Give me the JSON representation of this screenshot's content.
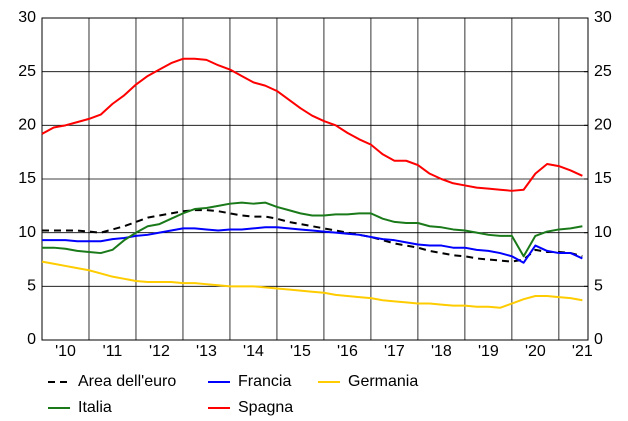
{
  "chart_data": {
    "type": "line",
    "x": [
      2010.0,
      2010.25,
      2010.5,
      2010.75,
      2011.0,
      2011.25,
      2011.5,
      2011.75,
      2012.0,
      2012.25,
      2012.5,
      2012.75,
      2013.0,
      2013.25,
      2013.5,
      2013.75,
      2014.0,
      2014.25,
      2014.5,
      2014.75,
      2015.0,
      2015.25,
      2015.5,
      2015.75,
      2016.0,
      2016.25,
      2016.5,
      2016.75,
      2017.0,
      2017.25,
      2017.5,
      2017.75,
      2018.0,
      2018.25,
      2018.5,
      2018.75,
      2019.0,
      2019.25,
      2019.5,
      2019.75,
      2020.0,
      2020.25,
      2020.5,
      2020.75,
      2021.0,
      2021.25,
      2021.5
    ],
    "series": [
      {
        "name": "Area dell'euro",
        "color": "#000000",
        "dash": true,
        "values": [
          10.2,
          10.2,
          10.2,
          10.2,
          10.1,
          10.0,
          10.3,
          10.6,
          11.0,
          11.4,
          11.6,
          11.8,
          12.0,
          12.1,
          12.1,
          12.0,
          11.8,
          11.6,
          11.5,
          11.5,
          11.3,
          11.0,
          10.8,
          10.6,
          10.4,
          10.2,
          10.0,
          9.8,
          9.6,
          9.3,
          9.0,
          8.8,
          8.6,
          8.3,
          8.1,
          7.9,
          7.8,
          7.6,
          7.5,
          7.4,
          7.3,
          7.5,
          8.4,
          8.2,
          8.2,
          8.1,
          7.8
        ]
      },
      {
        "name": "Francia",
        "color": "#0000ff",
        "values": [
          9.3,
          9.3,
          9.3,
          9.2,
          9.2,
          9.2,
          9.4,
          9.5,
          9.7,
          9.8,
          10.0,
          10.2,
          10.4,
          10.4,
          10.3,
          10.2,
          10.3,
          10.3,
          10.4,
          10.5,
          10.5,
          10.4,
          10.3,
          10.2,
          10.1,
          10.0,
          9.9,
          9.8,
          9.6,
          9.4,
          9.3,
          9.1,
          8.9,
          8.8,
          8.8,
          8.6,
          8.6,
          8.4,
          8.3,
          8.1,
          7.8,
          7.2,
          8.8,
          8.3,
          8.1,
          8.1,
          7.6
        ]
      },
      {
        "name": "Germania",
        "color": "#ffcc00",
        "values": [
          7.3,
          7.1,
          6.9,
          6.7,
          6.5,
          6.2,
          5.9,
          5.7,
          5.5,
          5.4,
          5.4,
          5.4,
          5.3,
          5.3,
          5.2,
          5.1,
          5.0,
          5.0,
          5.0,
          4.9,
          4.8,
          4.7,
          4.6,
          4.5,
          4.4,
          4.2,
          4.1,
          4.0,
          3.9,
          3.7,
          3.6,
          3.5,
          3.4,
          3.4,
          3.3,
          3.2,
          3.2,
          3.1,
          3.1,
          3.0,
          3.4,
          3.8,
          4.1,
          4.1,
          4.0,
          3.9,
          3.7
        ]
      },
      {
        "name": "Italia",
        "color": "#1a7a1a",
        "values": [
          8.6,
          8.6,
          8.5,
          8.3,
          8.2,
          8.1,
          8.4,
          9.3,
          10.0,
          10.6,
          10.8,
          11.3,
          11.8,
          12.2,
          12.3,
          12.5,
          12.7,
          12.8,
          12.7,
          12.8,
          12.4,
          12.1,
          11.8,
          11.6,
          11.6,
          11.7,
          11.7,
          11.8,
          11.8,
          11.3,
          11.0,
          10.9,
          10.9,
          10.6,
          10.5,
          10.3,
          10.2,
          10.0,
          9.8,
          9.7,
          9.7,
          7.8,
          9.7,
          10.1,
          10.3,
          10.4,
          10.6
        ]
      },
      {
        "name": "Spagna",
        "color": "#ff0000",
        "values": [
          19.2,
          19.8,
          20.0,
          20.3,
          20.6,
          21.0,
          22.0,
          22.8,
          23.8,
          24.6,
          25.2,
          25.8,
          26.2,
          26.2,
          26.1,
          25.6,
          25.2,
          24.6,
          24.0,
          23.7,
          23.2,
          22.4,
          21.6,
          20.9,
          20.4,
          20.0,
          19.3,
          18.7,
          18.2,
          17.3,
          16.7,
          16.7,
          16.3,
          15.5,
          15.0,
          14.6,
          14.4,
          14.2,
          14.1,
          14.0,
          13.9,
          14.0,
          15.5,
          16.4,
          16.2,
          15.8,
          15.3
        ]
      }
    ],
    "xlim": [
      2010,
      2021.62
    ],
    "xticks": [
      {
        "value": 2010,
        "label": "'10"
      },
      {
        "value": 2011,
        "label": "'11"
      },
      {
        "value": 2012,
        "label": "'12"
      },
      {
        "value": 2013,
        "label": "'13"
      },
      {
        "value": 2014,
        "label": "'14"
      },
      {
        "value": 2015,
        "label": "'15"
      },
      {
        "value": 2016,
        "label": "'16"
      },
      {
        "value": 2017,
        "label": "'17"
      },
      {
        "value": 2018,
        "label": "'18"
      },
      {
        "value": 2019,
        "label": "'19"
      },
      {
        "value": 2020,
        "label": "'20"
      },
      {
        "value": 2021,
        "label": "'21"
      }
    ],
    "ylim": [
      0,
      30
    ],
    "yticks": [
      0,
      5,
      10,
      15,
      20,
      25,
      30
    ],
    "y2lim": [
      0,
      30
    ],
    "y2ticks": [
      0,
      5,
      10,
      15,
      20,
      25,
      30
    ],
    "grid": true
  }
}
